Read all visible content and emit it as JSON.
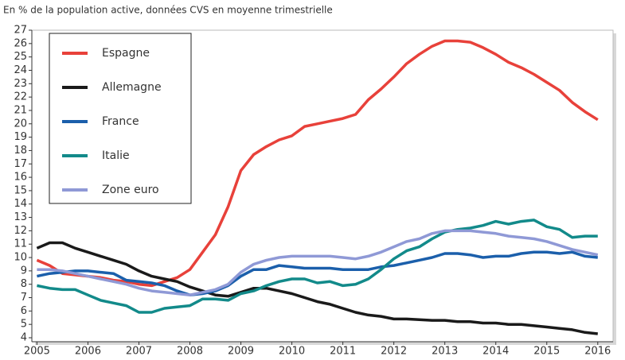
{
  "chart_data": {
    "type": "line",
    "subtitle": "En % de la population active, données CVS en moyenne trimestrielle",
    "x": [
      2005,
      2005.25,
      2005.5,
      2005.75,
      2006,
      2006.25,
      2006.5,
      2006.75,
      2007,
      2007.25,
      2007.5,
      2007.75,
      2008,
      2008.25,
      2008.5,
      2008.75,
      2009,
      2009.25,
      2009.5,
      2009.75,
      2010,
      2010.25,
      2010.5,
      2010.75,
      2011,
      2011.25,
      2011.5,
      2011.75,
      2012,
      2012.25,
      2012.5,
      2012.75,
      2013,
      2013.25,
      2013.5,
      2013.75,
      2014,
      2014.25,
      2014.5,
      2014.75,
      2015,
      2015.25,
      2015.5,
      2015.75,
      2016
    ],
    "xlim": [
      2004.9,
      2016.3
    ],
    "xticks": [
      2005,
      2006,
      2007,
      2008,
      2009,
      2010,
      2011,
      2012,
      2013,
      2014,
      2015,
      2016
    ],
    "ylim": [
      4,
      27
    ],
    "yticks": [
      4,
      5,
      6,
      7,
      8,
      9,
      10,
      11,
      12,
      13,
      14,
      15,
      16,
      17,
      18,
      19,
      20,
      21,
      22,
      23,
      24,
      25,
      26,
      27
    ],
    "legend": "upper left",
    "series": [
      {
        "name": "Espagne",
        "color": "#e8413a",
        "values": [
          9.8,
          9.4,
          8.8,
          8.7,
          8.6,
          8.5,
          8.3,
          8.2,
          8.0,
          7.9,
          8.2,
          8.5,
          9.1,
          10.4,
          11.7,
          13.8,
          16.5,
          17.7,
          18.3,
          18.8,
          19.1,
          19.8,
          20.0,
          20.2,
          20.4,
          20.7,
          21.8,
          22.6,
          23.5,
          24.5,
          25.2,
          25.8,
          26.2,
          26.2,
          26.1,
          25.7,
          25.2,
          24.6,
          24.2,
          23.7,
          23.1,
          22.5,
          21.6,
          20.9,
          20.3
        ]
      },
      {
        "name": "Allemagne",
        "color": "#1a1a1a",
        "values": [
          10.7,
          11.1,
          11.1,
          10.7,
          10.4,
          10.1,
          9.8,
          9.5,
          9.0,
          8.6,
          8.4,
          8.2,
          7.8,
          7.5,
          7.2,
          7.1,
          7.4,
          7.7,
          7.7,
          7.5,
          7.3,
          7.0,
          6.7,
          6.5,
          6.2,
          5.9,
          5.7,
          5.6,
          5.4,
          5.4,
          5.35,
          5.3,
          5.3,
          5.2,
          5.2,
          5.1,
          5.1,
          5.0,
          5.0,
          4.9,
          4.8,
          4.7,
          4.6,
          4.4,
          4.3
        ]
      },
      {
        "name": "France",
        "color": "#1b5fab",
        "values": [
          8.6,
          8.8,
          8.9,
          9.0,
          9.0,
          8.9,
          8.8,
          8.3,
          8.2,
          8.1,
          7.9,
          7.5,
          7.2,
          7.3,
          7.5,
          7.9,
          8.6,
          9.1,
          9.1,
          9.4,
          9.3,
          9.2,
          9.2,
          9.2,
          9.1,
          9.1,
          9.1,
          9.3,
          9.4,
          9.6,
          9.8,
          10.0,
          10.3,
          10.3,
          10.2,
          10.0,
          10.1,
          10.1,
          10.3,
          10.4,
          10.4,
          10.3,
          10.4,
          10.1,
          10.0
        ]
      },
      {
        "name": "Italie",
        "color": "#128a8a",
        "values": [
          7.9,
          7.7,
          7.6,
          7.6,
          7.2,
          6.8,
          6.6,
          6.4,
          5.9,
          5.9,
          6.2,
          6.3,
          6.4,
          6.9,
          6.9,
          6.8,
          7.3,
          7.5,
          7.9,
          8.2,
          8.4,
          8.4,
          8.1,
          8.2,
          7.9,
          8.0,
          8.4,
          9.1,
          9.9,
          10.5,
          10.8,
          11.4,
          11.9,
          12.1,
          12.2,
          12.4,
          12.7,
          12.5,
          12.7,
          12.8,
          12.3,
          12.1,
          11.5,
          11.6,
          11.6
        ]
      },
      {
        "name": "Zone euro",
        "color": "#8f99d6",
        "values": [
          9.1,
          9.1,
          9.0,
          8.8,
          8.6,
          8.4,
          8.2,
          8.0,
          7.7,
          7.5,
          7.4,
          7.3,
          7.2,
          7.4,
          7.6,
          8.0,
          8.9,
          9.5,
          9.8,
          10.0,
          10.1,
          10.1,
          10.1,
          10.1,
          10.0,
          9.9,
          10.1,
          10.4,
          10.8,
          11.2,
          11.4,
          11.8,
          12.0,
          12.0,
          12.0,
          11.9,
          11.8,
          11.6,
          11.5,
          11.4,
          11.2,
          10.9,
          10.6,
          10.4,
          10.2
        ]
      }
    ]
  }
}
